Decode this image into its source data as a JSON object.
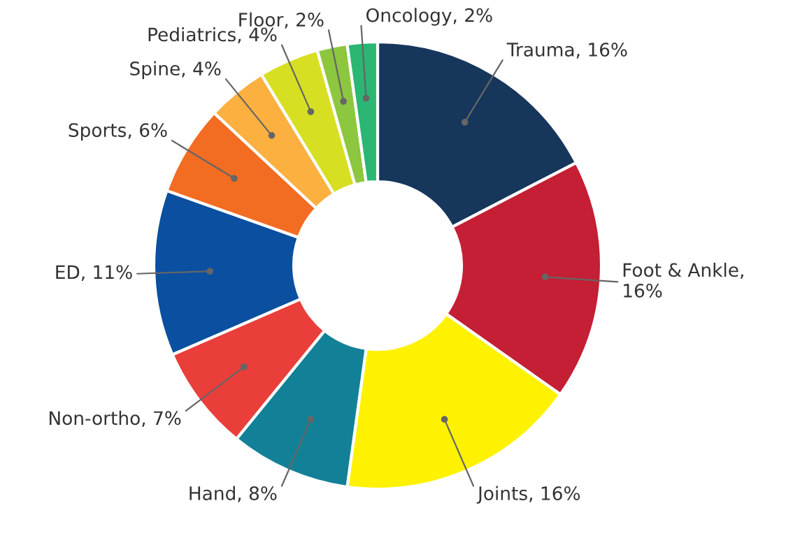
{
  "chart_data": {
    "type": "donut",
    "categories": [
      "Trauma, 16%",
      "Foot & Ankle, 16%",
      "Joints, 16%",
      "Hand, 8%",
      "Non-ortho, 7%",
      "ED, 11%",
      "Sports, 6%",
      "Spine, 4%",
      "Pediatrics, 4%",
      "Floor, 2%",
      "Oncology, 2%"
    ],
    "values": [
      16,
      16,
      16,
      8,
      7,
      11,
      6,
      4,
      4,
      2,
      2
    ],
    "colors": [
      "#16365c",
      "#c41f35",
      "#fff200",
      "#128197",
      "#e93e3a",
      "#0a4fa0",
      "#f26c22",
      "#fbb040",
      "#d7df23",
      "#8dc63f",
      "#2bb673"
    ],
    "legend": false
  }
}
